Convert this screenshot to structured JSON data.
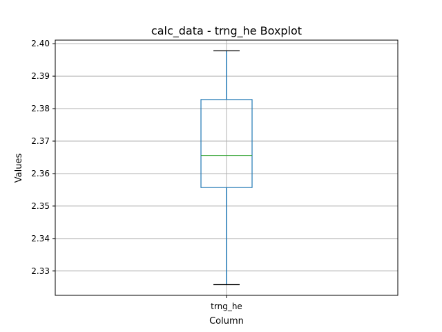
{
  "chart_data": {
    "type": "boxplot",
    "title": "calc_data - trng_he Boxplot",
    "xlabel": "Column",
    "ylabel": "Values",
    "categories": [
      "trng_he"
    ],
    "series": [
      {
        "name": "trng_he",
        "whisker_low": 2.3258,
        "q1": 2.3557,
        "median": 2.3656,
        "q3": 2.3828,
        "whisker_high": 2.3978
      }
    ],
    "ylim": [
      2.3225,
      2.4011
    ],
    "yticks": [
      2.33,
      2.34,
      2.35,
      2.36,
      2.37,
      2.38,
      2.39,
      2.4
    ],
    "ytick_labels": [
      "2.33",
      "2.34",
      "2.35",
      "2.36",
      "2.37",
      "2.38",
      "2.39",
      "2.40"
    ],
    "grid": true,
    "colors": {
      "box": "#1f77b4",
      "median": "#2ca02c",
      "caps": "#000000",
      "grid": "#b0b0b0",
      "axes": "#000000"
    }
  }
}
